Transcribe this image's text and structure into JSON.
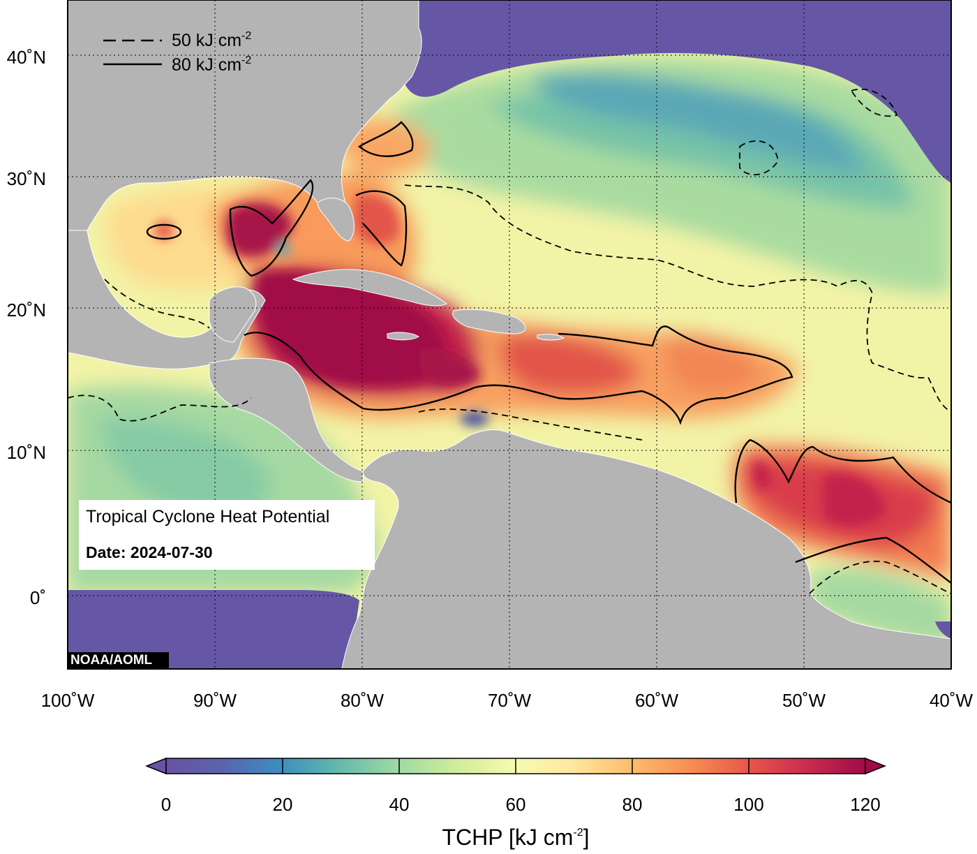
{
  "map": {
    "credit": "NOAA/AOML",
    "info_title": "Tropical Cyclone Heat Potential",
    "info_date_label": "Date: 2024-07-30",
    "extent": {
      "lon": [
        -100,
        -40
      ],
      "lat": [
        -5,
        44
      ]
    },
    "lon_ticks": [
      "100˚W",
      "90˚W",
      "80˚W",
      "70˚W",
      "60˚W",
      "50˚W",
      "40˚W"
    ],
    "lat_ticks": [
      "40˚N",
      "30˚N",
      "20˚N",
      "10˚N",
      "0˚"
    ],
    "legend": {
      "dashed_label": "50 kJ cm",
      "dashed_exp": "-2",
      "solid_label": "80 kJ cm",
      "solid_exp": "-2"
    },
    "colorbar": {
      "title": "TCHP [kJ cm",
      "title_exp": "-2",
      "title_end": "]",
      "ticks": [
        "0",
        "20",
        "40",
        "60",
        "80",
        "100",
        "120"
      ],
      "range": [
        0,
        120
      ]
    },
    "colors": {
      "land": "#b4b4b4",
      "cold_ocean": "#6657a6",
      "hot_ocean": "#a8124a"
    }
  }
}
